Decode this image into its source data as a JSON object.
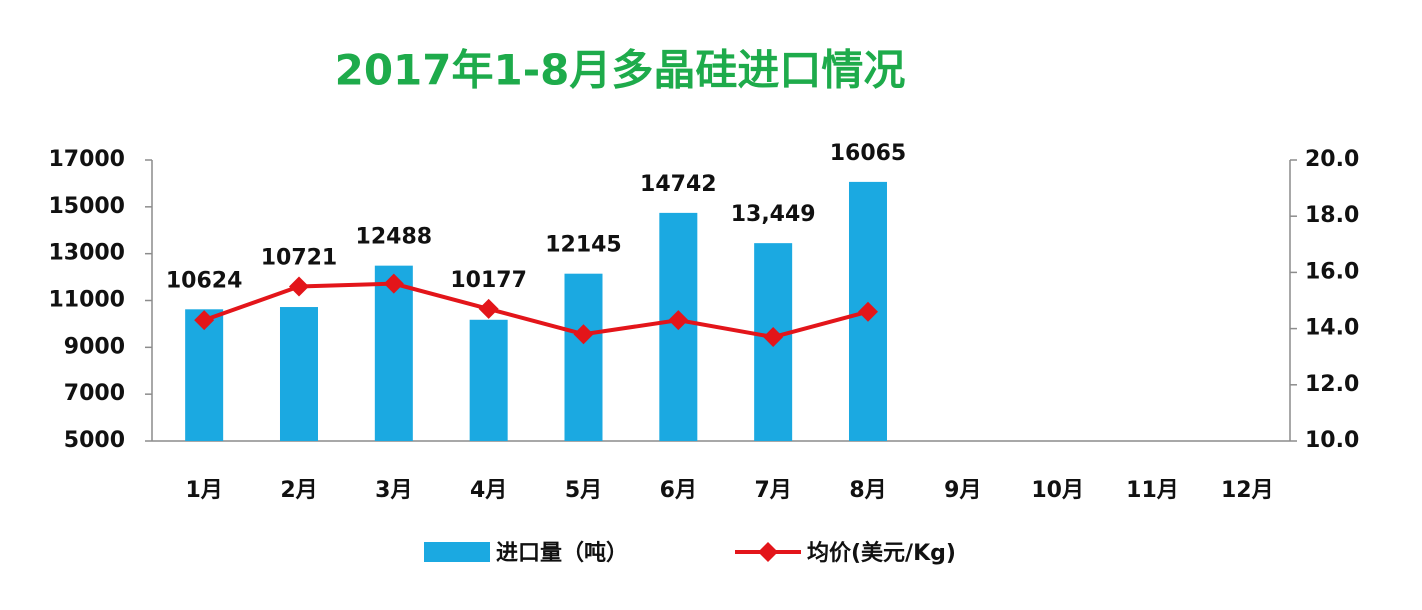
{
  "chart_data": {
    "type": "bar-line",
    "title": "2017年1-8月多晶硅进口情况",
    "categories": [
      "1月",
      "2月",
      "3月",
      "4月",
      "5月",
      "6月",
      "7月",
      "8月",
      "9月",
      "10月",
      "11月",
      "12月"
    ],
    "series": [
      {
        "name": "进口量（吨）",
        "type": "bar",
        "color": "#1ba9e1",
        "values": [
          10624,
          10721,
          12488,
          10177,
          12145,
          14742,
          13449,
          16065,
          null,
          null,
          null,
          null
        ],
        "value_labels": [
          "10624",
          "10721",
          "12488",
          "10177",
          "12145",
          "14742",
          "13,449",
          "16065",
          null,
          null,
          null,
          null
        ]
      },
      {
        "name": "均价(美元/Kg)",
        "type": "line",
        "axis": "y2",
        "color": "#e3151a",
        "values": [
          14.3,
          15.5,
          15.6,
          14.7,
          13.8,
          14.3,
          13.7,
          14.6,
          null,
          null,
          null,
          null
        ]
      }
    ],
    "ylim": [
      5000,
      17000
    ],
    "yticks": [
      5000,
      7000,
      9000,
      11000,
      13000,
      15000,
      17000
    ],
    "y2lim": [
      10,
      20
    ],
    "y2ticks": [
      {
        "value": 10,
        "label": "10.0"
      },
      {
        "value": 12,
        "label": "12.0"
      },
      {
        "value": 14,
        "label": "14.0"
      },
      {
        "value": 16,
        "label": "16.0"
      },
      {
        "value": 18,
        "label": "18.0"
      },
      {
        "value": 20,
        "label": "20.0"
      }
    ],
    "legend": "bottom"
  }
}
